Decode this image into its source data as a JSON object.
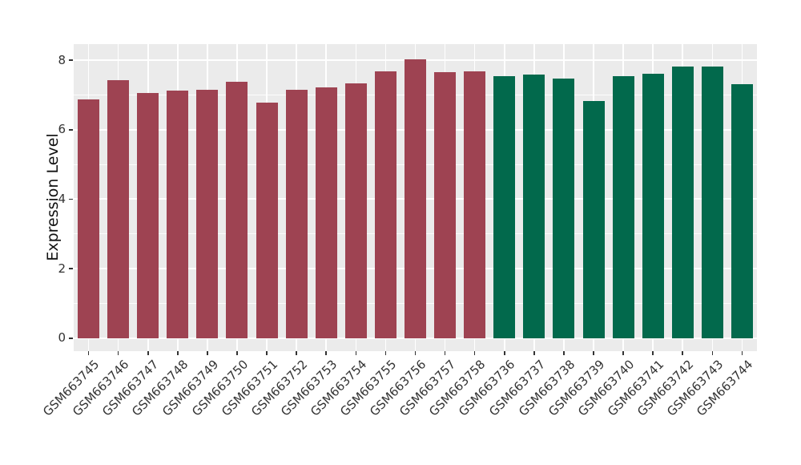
{
  "chart_data": {
    "type": "bar",
    "title": "",
    "xlabel": "",
    "ylabel": "Expression Level",
    "categories": [
      "GSM663745",
      "GSM663746",
      "GSM663747",
      "GSM663748",
      "GSM663749",
      "GSM663750",
      "GSM663751",
      "GSM663752",
      "GSM663753",
      "GSM663754",
      "GSM663755",
      "GSM663756",
      "GSM663757",
      "GSM663758",
      "GSM663736",
      "GSM663737",
      "GSM663738",
      "GSM663739",
      "GSM663740",
      "GSM663741",
      "GSM663742",
      "GSM663743",
      "GSM663744"
    ],
    "values": [
      6.86,
      7.42,
      7.05,
      7.12,
      7.15,
      7.38,
      6.78,
      7.15,
      7.22,
      7.34,
      7.68,
      8.02,
      7.66,
      7.68,
      7.55,
      7.59,
      7.46,
      6.83,
      7.54,
      7.61,
      7.82,
      7.82,
      7.3
    ],
    "bar_colors": [
      "#9E4352",
      "#9E4352",
      "#9E4352",
      "#9E4352",
      "#9E4352",
      "#9E4352",
      "#9E4352",
      "#9E4352",
      "#9E4352",
      "#9E4352",
      "#9E4352",
      "#9E4352",
      "#9E4352",
      "#9E4352",
      "#02694C",
      "#02694C",
      "#02694C",
      "#02694C",
      "#02694C",
      "#02694C",
      "#02694C",
      "#02694C",
      "#02694C"
    ],
    "group_color_legend": {
      "first_14_bars": "#9E4352",
      "last_9_bars": "#02694C"
    },
    "yticks": [
      0,
      2,
      4,
      6,
      8
    ],
    "minor_gridlines_at": [
      1,
      3,
      5,
      7
    ],
    "ylim": [
      -0.35,
      8.46
    ],
    "grid": "white major+minor horizontal lines and vertical lines at category centers on gray panel",
    "legend_position": "none"
  },
  "colors": {
    "figure_background": "#FFFFFF",
    "panel_background": "#EBEBEB",
    "gridline": "#FFFFFF",
    "tick_text": "#333333",
    "axis_title_text": "#111111"
  }
}
